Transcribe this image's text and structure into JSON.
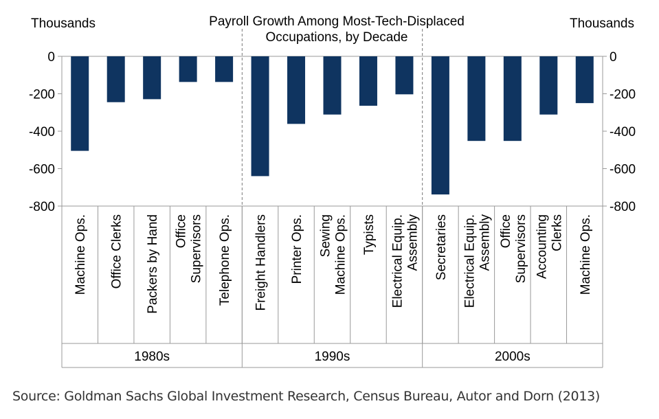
{
  "chart_data": {
    "type": "bar",
    "title": "Payroll Growth Among Most-Tech-Displaced Occupations, by Decade",
    "title_lines": [
      "Payroll Growth Among Most-Tech-Displaced",
      "Occupations, by Decade"
    ],
    "ylabel_left": "Thousands",
    "ylabel_right": "Thousands",
    "ylim": [
      -800,
      0
    ],
    "yticks": [
      0,
      -200,
      -400,
      -600,
      -800
    ],
    "grid": false,
    "bar_color": "#0f3460",
    "groups": [
      {
        "label": "1980s",
        "categories": [
          "Machine Ops.",
          "Office Clerks",
          "Packers by Hand",
          "Office Supervisors",
          "Telephone Ops."
        ],
        "values": [
          -505,
          -245,
          -229,
          -137,
          -137
        ]
      },
      {
        "label": "1990s",
        "categories": [
          "Freight Handlers",
          "Printer Ops.",
          "Sewing Machine Ops.",
          "Typists",
          "Electrical Equip. Assembly"
        ],
        "values": [
          -640,
          -361,
          -311,
          -264,
          -203
        ]
      },
      {
        "label": "2000s",
        "categories": [
          "Secretaries",
          "Electrical Equip. Assembly",
          "Office Supervisors",
          "Accounting Clerks",
          "Machine Ops."
        ],
        "values": [
          -738,
          -452,
          -452,
          -311,
          -250
        ]
      }
    ]
  },
  "source": "Source: Goldman Sachs Global Investment Research, Census Bureau, Autor and Dorn (2013)"
}
